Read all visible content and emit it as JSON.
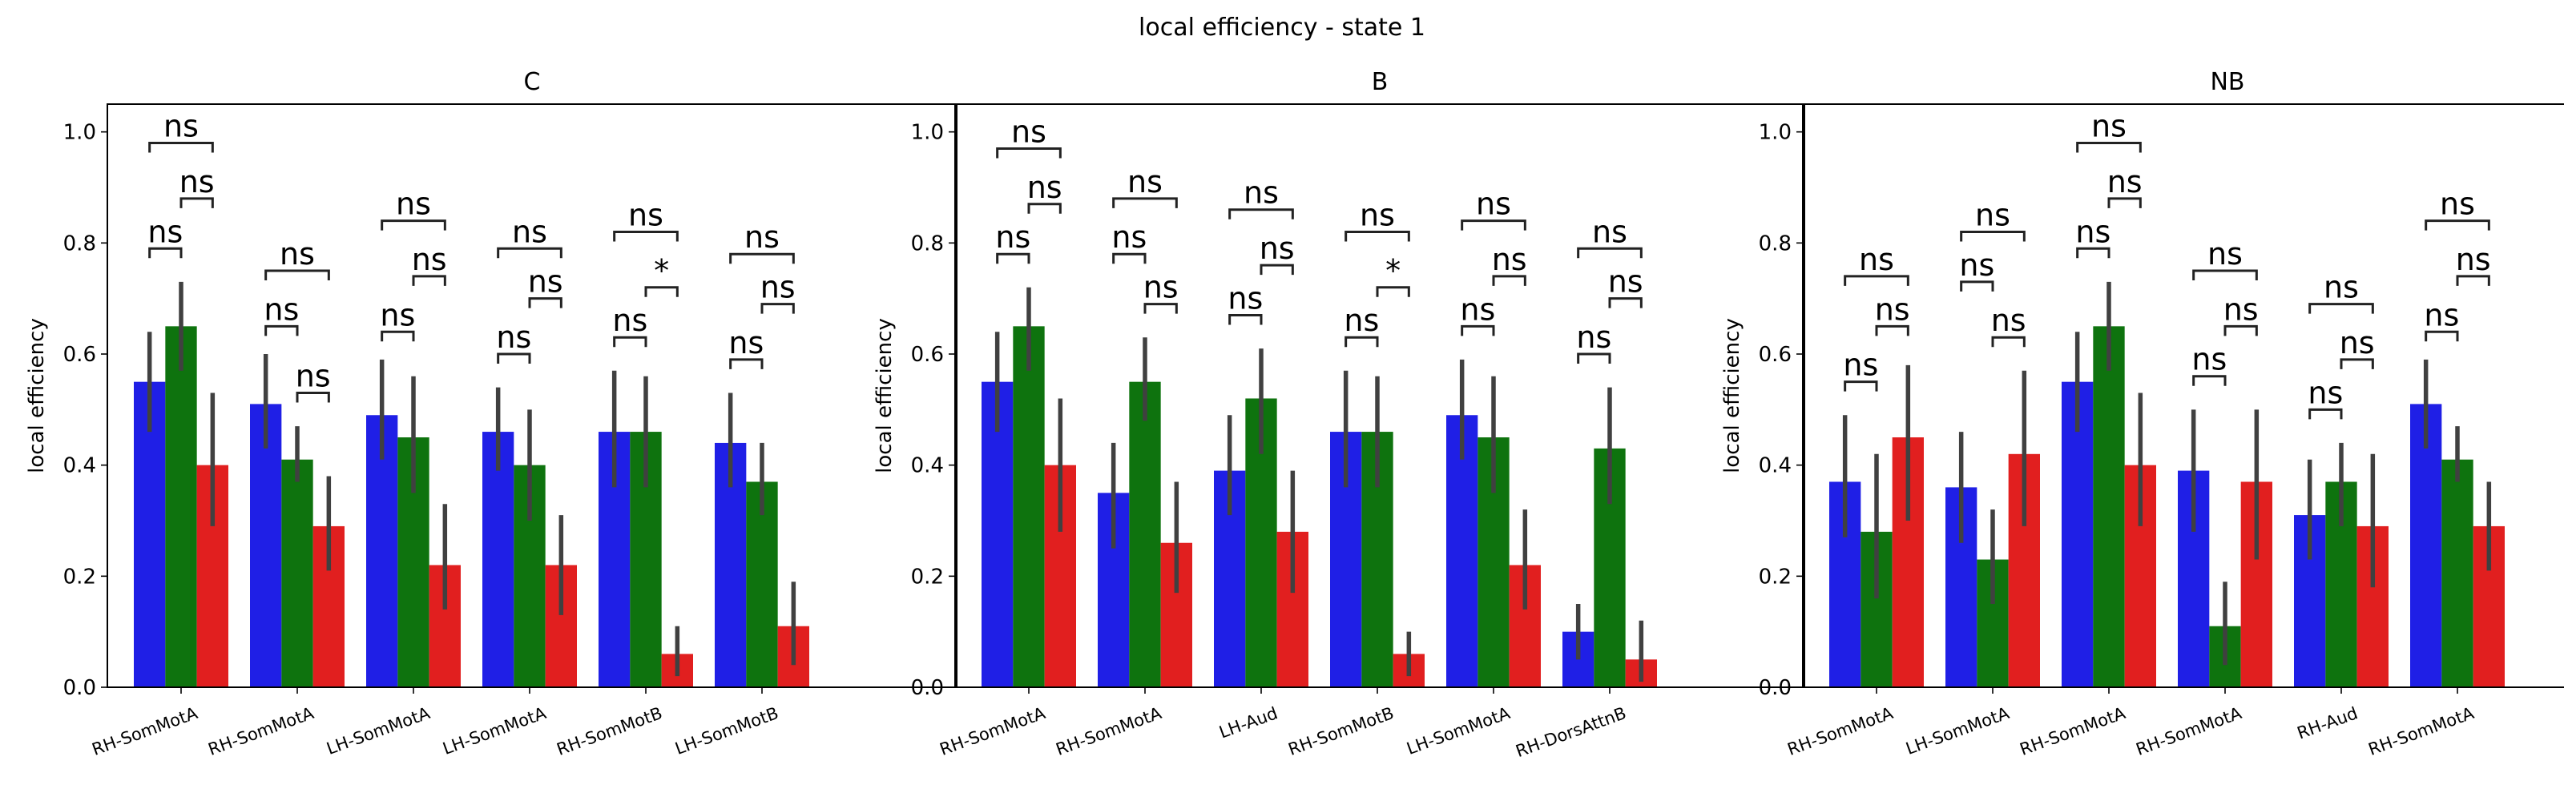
{
  "figure": {
    "title": "local efficiency - state 1"
  },
  "colors": {
    "c0": "#1f1fe6",
    "c1": "#0e730e",
    "c2": "#e11f1f",
    "err": "#404040"
  },
  "chart_data": [
    {
      "type": "bar",
      "title": "C",
      "ylabel": "local efficiency",
      "ylim": [
        0,
        1.05
      ],
      "yticks": [
        "0.0",
        "0.2",
        "0.4",
        "0.6",
        "0.8",
        "1.0"
      ],
      "categories": [
        "RH-SomMotA",
        "RH-SomMotA",
        "LH-SomMotA",
        "LH-SomMotA",
        "RH-SomMotB",
        "LH-SomMotB"
      ],
      "series": [
        {
          "values": [
            0.55,
            0.51,
            0.49,
            0.46,
            0.46,
            0.44
          ],
          "err_low": [
            0.46,
            0.43,
            0.41,
            0.39,
            0.36,
            0.36
          ],
          "err_high": [
            0.64,
            0.6,
            0.59,
            0.54,
            0.57,
            0.53
          ]
        },
        {
          "values": [
            0.65,
            0.41,
            0.45,
            0.4,
            0.46,
            0.37
          ],
          "err_low": [
            0.57,
            0.37,
            0.35,
            0.3,
            0.36,
            0.31
          ],
          "err_high": [
            0.73,
            0.47,
            0.56,
            0.5,
            0.56,
            0.44
          ]
        },
        {
          "values": [
            0.4,
            0.29,
            0.22,
            0.22,
            0.06,
            0.11
          ],
          "err_low": [
            0.29,
            0.21,
            0.14,
            0.13,
            0.02,
            0.04
          ],
          "err_high": [
            0.53,
            0.38,
            0.33,
            0.31,
            0.11,
            0.19
          ]
        }
      ],
      "annotations": [
        {
          "label": "ns",
          "values": [
            0.98,
            0.88,
            0.79
          ]
        },
        {
          "label": "ns",
          "values": [
            0.75,
            0.53,
            0.65
          ]
        },
        {
          "label": "ns",
          "values": [
            0.84,
            0.74,
            0.64
          ]
        },
        {
          "label": "ns",
          "values": [
            0.79,
            0.7,
            0.6
          ]
        },
        {
          "label": "ns",
          "values": [
            0.82,
            0.72,
            0.63
          ]
        },
        {
          "label": "ns",
          "values": [
            0.78,
            0.69,
            0.59
          ]
        }
      ],
      "mid_labels": [
        "ns",
        "ns",
        "ns",
        "ns",
        "*",
        "ns"
      ]
    },
    {
      "type": "bar",
      "title": "B",
      "ylabel": "local efficiency",
      "ylim": [
        0,
        1.05
      ],
      "yticks": [
        "0.0",
        "0.2",
        "0.4",
        "0.6",
        "0.8",
        "1.0"
      ],
      "categories": [
        "RH-SomMotA",
        "RH-SomMotA",
        "LH-Aud",
        "RH-SomMotB",
        "LH-SomMotA",
        "RH-DorsAttnB"
      ],
      "series": [
        {
          "values": [
            0.55,
            0.35,
            0.39,
            0.46,
            0.49,
            0.1
          ],
          "err_low": [
            0.46,
            0.25,
            0.31,
            0.36,
            0.41,
            0.05
          ],
          "err_high": [
            0.64,
            0.44,
            0.49,
            0.57,
            0.59,
            0.15
          ]
        },
        {
          "values": [
            0.65,
            0.55,
            0.52,
            0.46,
            0.45,
            0.43
          ],
          "err_low": [
            0.57,
            0.48,
            0.42,
            0.36,
            0.35,
            0.33
          ],
          "err_high": [
            0.72,
            0.63,
            0.61,
            0.56,
            0.56,
            0.54
          ]
        },
        {
          "values": [
            0.4,
            0.26,
            0.28,
            0.06,
            0.22,
            0.05
          ],
          "err_low": [
            0.28,
            0.17,
            0.17,
            0.02,
            0.14,
            0.01
          ],
          "err_high": [
            0.52,
            0.37,
            0.39,
            0.1,
            0.32,
            0.12
          ]
        }
      ],
      "annotations": [
        {
          "label": "ns",
          "values": [
            0.97,
            0.87,
            0.78
          ]
        },
        {
          "label": "ns",
          "values": [
            0.88,
            0.69,
            0.78
          ]
        },
        {
          "label": "ns",
          "values": [
            0.86,
            0.76,
            0.67
          ]
        },
        {
          "label": "ns",
          "values": [
            0.82,
            0.72,
            0.63
          ]
        },
        {
          "label": "ns",
          "values": [
            0.84,
            0.74,
            0.65
          ]
        },
        {
          "label": "ns",
          "values": [
            0.79,
            0.7,
            0.6
          ]
        }
      ],
      "mid_labels": [
        "ns",
        "ns",
        "ns",
        "*",
        "ns",
        "ns"
      ]
    },
    {
      "type": "bar",
      "title": "NB",
      "ylabel": "local efficiency",
      "ylim": [
        0,
        1.05
      ],
      "yticks": [
        "0.0",
        "0.2",
        "0.4",
        "0.6",
        "0.8",
        "1.0"
      ],
      "categories": [
        "RH-SomMotA",
        "LH-SomMotA",
        "RH-SomMotA",
        "RH-SomMotA",
        "RH-Aud",
        "RH-SomMotA"
      ],
      "series": [
        {
          "values": [
            0.37,
            0.36,
            0.55,
            0.39,
            0.31,
            0.51
          ],
          "err_low": [
            0.27,
            0.26,
            0.46,
            0.28,
            0.23,
            0.43
          ],
          "err_high": [
            0.49,
            0.46,
            0.64,
            0.5,
            0.41,
            0.59
          ]
        },
        {
          "values": [
            0.28,
            0.23,
            0.65,
            0.11,
            0.37,
            0.41
          ],
          "err_low": [
            0.16,
            0.15,
            0.57,
            0.04,
            0.29,
            0.37
          ],
          "err_high": [
            0.42,
            0.32,
            0.73,
            0.19,
            0.44,
            0.47
          ]
        },
        {
          "values": [
            0.45,
            0.42,
            0.4,
            0.37,
            0.29,
            0.29
          ],
          "err_low": [
            0.3,
            0.29,
            0.29,
            0.23,
            0.18,
            0.21
          ],
          "err_high": [
            0.58,
            0.57,
            0.53,
            0.5,
            0.42,
            0.37
          ]
        }
      ],
      "annotations": [
        {
          "label": "ns",
          "values": [
            0.74,
            0.65,
            0.55
          ]
        },
        {
          "label": "ns",
          "values": [
            0.82,
            0.63,
            0.73
          ]
        },
        {
          "label": "ns",
          "values": [
            0.98,
            0.88,
            0.79
          ]
        },
        {
          "label": "ns",
          "values": [
            0.75,
            0.65,
            0.56
          ]
        },
        {
          "label": "ns",
          "values": [
            0.69,
            0.59,
            0.5
          ]
        },
        {
          "label": "ns",
          "values": [
            0.84,
            0.74,
            0.64
          ]
        }
      ],
      "mid_labels": [
        "ns",
        "ns",
        "ns",
        "ns",
        "ns",
        "ns"
      ]
    }
  ]
}
